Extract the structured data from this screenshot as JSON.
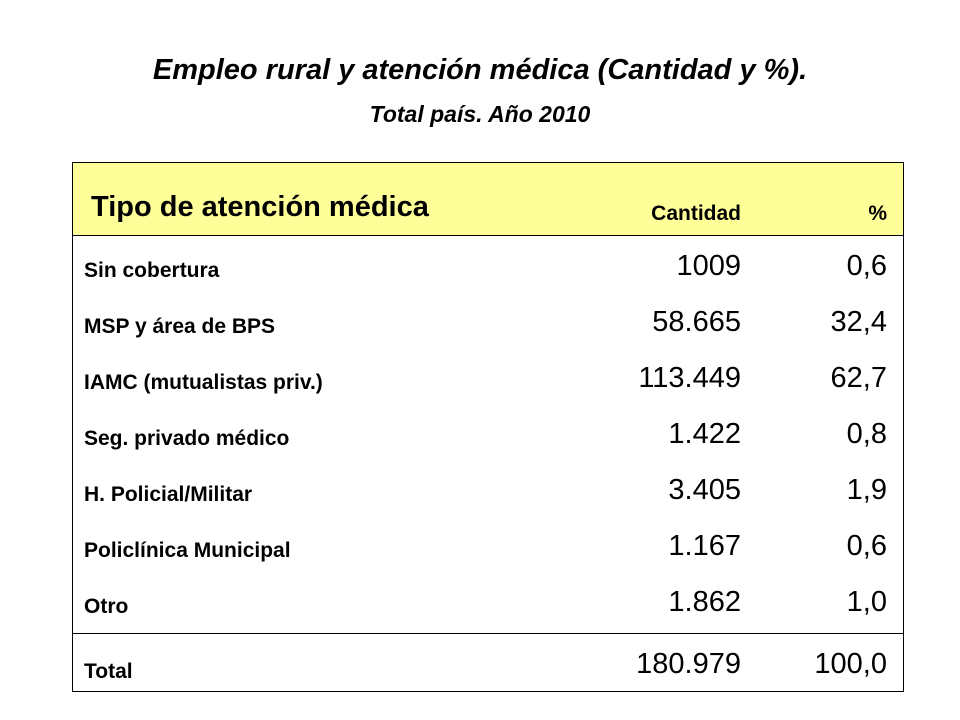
{
  "title": "Empleo rural y atención médica (Cantidad y %).",
  "subtitle": "Total país. Año 2010",
  "table": {
    "headers": {
      "type": "Tipo de atención médica",
      "quantity": "Cantidad",
      "percent": "%"
    },
    "rows": [
      {
        "label": "Sin cobertura",
        "quantity": "1009",
        "percent": "0,6"
      },
      {
        "label": "MSP y área de BPS",
        "quantity": "58.665",
        "percent": "32,4"
      },
      {
        "label": "IAMC (mutualistas priv.)",
        "quantity": "113.449",
        "percent": "62,7"
      },
      {
        "label": "Seg. privado médico",
        "quantity": "1.422",
        "percent": "0,8"
      },
      {
        "label": "H. Policial/Militar",
        "quantity": "3.405",
        "percent": "1,9"
      },
      {
        "label": "Policlínica Municipal",
        "quantity": "1.167",
        "percent": "0,6"
      },
      {
        "label": "Otro",
        "quantity": "1.862",
        "percent": "1,0"
      }
    ],
    "total": {
      "label": "Total",
      "quantity": "180.979",
      "percent": "100,0"
    }
  },
  "colors": {
    "header_background": "#ffff99",
    "border": "#000000",
    "text": "#000000"
  }
}
